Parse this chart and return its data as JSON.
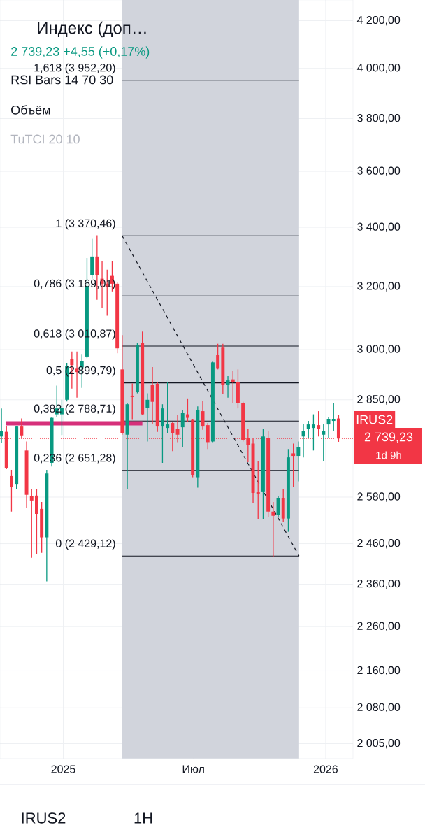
{
  "chart_data": {
    "type": "candlestick",
    "title": "Индекс (доп…",
    "subtitle": "2 739,23 +4,55 (+0,17%)",
    "x": [
      "2024-10-07",
      "2024-10-14",
      "2024-10-21",
      "2024-10-28",
      "2024-11-04",
      "2024-11-11",
      "2024-11-18",
      "2024-11-25",
      "2024-12-02",
      "2024-12-09",
      "2024-12-16",
      "2024-12-23",
      "2024-12-30",
      "2025-01-06",
      "2025-01-13",
      "2025-01-20",
      "2025-01-27",
      "2025-02-03",
      "2025-02-10",
      "2025-02-17",
      "2025-02-24",
      "2025-03-03",
      "2025-03-10",
      "2025-03-17",
      "2025-03-24",
      "2025-03-31",
      "2025-04-07",
      "2025-04-14",
      "2025-04-21",
      "2025-04-28",
      "2025-05-05",
      "2025-05-12",
      "2025-05-19",
      "2025-05-26",
      "2025-06-02",
      "2025-06-09",
      "2025-06-16",
      "2025-06-23",
      "2025-06-30",
      "2025-07-07",
      "2025-07-14",
      "2025-07-21",
      "2025-07-28",
      "2025-08-04",
      "2025-08-11",
      "2025-08-18",
      "2025-08-25",
      "2025-09-01",
      "2025-09-08",
      "2025-09-15",
      "2025-09-22",
      "2025-09-29",
      "2025-10-06",
      "2025-10-13",
      "2025-10-20",
      "2025-10-27",
      "2025-11-03",
      "2025-11-10",
      "2025-11-17",
      "2025-11-24",
      "2025-12-01",
      "2025-12-08",
      "2025-12-15",
      "2025-12-22",
      "2025-12-29",
      "2026-01-05",
      "2026-01-12",
      "2026-01-19"
    ],
    "ohlc": [
      [
        2745,
        2825,
        2726,
        2760
      ],
      [
        2758,
        2773,
        2655,
        2658
      ],
      [
        2636,
        2653,
        2542,
        2607
      ],
      [
        2615,
        2775,
        2601,
        2773
      ],
      [
        2773,
        2796,
        2741,
        2748
      ],
      [
        2706,
        2731,
        2551,
        2586
      ],
      [
        2582,
        2601,
        2425,
        2571
      ],
      [
        2584,
        2601,
        2434,
        2536
      ],
      [
        2549,
        2567,
        2437,
        2476
      ],
      [
        2476,
        2653,
        2367,
        2643
      ],
      [
        2672,
        2800,
        2662,
        2798
      ],
      [
        2808,
        2892,
        2800,
        2825
      ],
      [
        2808,
        2850,
        2749,
        2827
      ],
      [
        2850,
        2960,
        2845,
        2951
      ],
      [
        2972,
        2994,
        2883,
        2953
      ],
      [
        2942,
        2994,
        2856,
        2932
      ],
      [
        2946,
        2985,
        2885,
        2964
      ],
      [
        2979,
        3295,
        2974,
        3202
      ],
      [
        3237,
        3360,
        3226,
        3300
      ],
      [
        3300,
        3372,
        3157,
        3237
      ],
      [
        3226,
        3284,
        3130,
        3209
      ],
      [
        3209,
        3256,
        3106,
        3198
      ],
      [
        3235,
        3284,
        3184,
        3209
      ],
      [
        3209,
        3214,
        2989,
        3004
      ],
      [
        2940,
        3045,
        2750,
        2754
      ],
      [
        2750,
        2840,
        2601,
        2837
      ],
      [
        2862,
        2898,
        2792,
        2858
      ],
      [
        2873,
        3020,
        2869,
        3015
      ],
      [
        3021,
        3056,
        2806,
        2808
      ],
      [
        2827,
        2869,
        2731,
        2850
      ],
      [
        2893,
        2947,
        2779,
        2844
      ],
      [
        2897,
        2903,
        2758,
        2773
      ],
      [
        2773,
        2837,
        2672,
        2825
      ],
      [
        2769,
        2901,
        2754,
        2779
      ],
      [
        2783,
        2785,
        2704,
        2754
      ],
      [
        2767,
        2806,
        2729,
        2750
      ],
      [
        2771,
        2821,
        2716,
        2812
      ],
      [
        2808,
        2854,
        2787,
        2798
      ],
      [
        2792,
        2794,
        2633,
        2639
      ],
      [
        2633,
        2831,
        2605,
        2821
      ],
      [
        2817,
        2846,
        2764,
        2773
      ],
      [
        2777,
        2783,
        2710,
        2729
      ],
      [
        2731,
        2963,
        2729,
        2961
      ],
      [
        2983,
        3018,
        2940,
        2942
      ],
      [
        3006,
        3018,
        2867,
        2893
      ],
      [
        2893,
        2920,
        2856,
        2907
      ],
      [
        2910,
        2936,
        2840,
        2903
      ],
      [
        2903,
        2940,
        2825,
        2840
      ],
      [
        2840,
        2844,
        2731,
        2735
      ],
      [
        2741,
        2767,
        2674,
        2722
      ],
      [
        2725,
        2741,
        2564,
        2591
      ],
      [
        2593,
        2677,
        2522,
        2589
      ],
      [
        2595,
        2767,
        2522,
        2745
      ],
      [
        2741,
        2760,
        2527,
        2542
      ],
      [
        2542,
        2567,
        2428,
        2531
      ],
      [
        2533,
        2582,
        2527,
        2578
      ],
      [
        2578,
        2601,
        2515,
        2524
      ],
      [
        2524,
        2710,
        2490,
        2687
      ],
      [
        2698,
        2725,
        2607,
        2691
      ],
      [
        2691,
        2731,
        2622,
        2716
      ],
      [
        2745,
        2779,
        2687,
        2760
      ],
      [
        2767,
        2789,
        2740,
        2779
      ],
      [
        2769,
        2808,
        2706,
        2779
      ],
      [
        2777,
        2817,
        2745,
        2767
      ],
      [
        2750,
        2779,
        2677,
        2760
      ],
      [
        2779,
        2800,
        2740,
        2794
      ],
      [
        2789,
        2840,
        2760,
        2794
      ],
      [
        2796,
        2806,
        2730,
        2739.23
      ]
    ],
    "colors": [
      "#089981",
      "#f23645",
      "#f23645",
      "#089981",
      "#f23645",
      "#f23645",
      "#f23645",
      "#f23645",
      "#f23645",
      "#089981",
      "#089981",
      "#089981",
      "#089981",
      "#089981",
      "#f23645",
      "#f23645",
      "#089981",
      "#089981",
      "#089981",
      "#f23645",
      "#f23645",
      "#f23645",
      "#f23645",
      "#f23645",
      "#f23645",
      "#089981",
      "#f23645",
      "#089981",
      "#f23645",
      "#089981",
      "#f23645",
      "#f23645",
      "#089981",
      "#089981",
      "#f23645",
      "#f23645",
      "#089981",
      "#f23645",
      "#f23645",
      "#089981",
      "#f23645",
      "#f23645",
      "#089981",
      "#f23645",
      "#f23645",
      "#089981",
      "#f23645",
      "#f23645",
      "#f23645",
      "#f23645",
      "#f23645",
      "#f23645",
      "#089981",
      "#f23645",
      "#f23645",
      "#089981",
      "#f23645",
      "#089981",
      "#f23645",
      "#089981",
      "#089981",
      "#089981",
      "#089981",
      "#f23645",
      "#089981",
      "#089981",
      "#089981",
      "#f23645"
    ],
    "series": [
      {
        "type": "line",
        "x": [
          "2025-03-24",
          "2025-11-25"
        ],
        "values": [
          3370.46,
          2429.12
        ],
        "color": "#131722",
        "line_style": "dashed"
      },
      {
        "type": "line",
        "x": [
          "2024-10-13",
          "2025-04-21"
        ],
        "values": [
          2782,
          2782
        ],
        "color": "#d6307a",
        "line_style": "solid"
      }
    ],
    "bands": [
      {
        "axis": "x",
        "from": "2025-03-24",
        "to": "2025-11-25",
        "color": "#d1d4dc"
      }
    ],
    "ref_lines": [
      {
        "axis": "y",
        "value": 3952.2,
        "label": "1,618 (3 952,20)",
        "color": "#131722"
      },
      {
        "axis": "y",
        "value": 3370.46,
        "label": "1 (3 370,46)",
        "color": "#131722"
      },
      {
        "axis": "y",
        "value": 3169.01,
        "label": "0,786 (3 169,01)",
        "color": "#131722"
      },
      {
        "axis": "y",
        "value": 3010.87,
        "label": "0,618 (3 010,87)",
        "color": "#131722"
      },
      {
        "axis": "y",
        "value": 2899.79,
        "label": "0,5 (2 899,79)",
        "color": "#131722"
      },
      {
        "axis": "y",
        "value": 2788.71,
        "label": "0,382 (2 788,71)",
        "color": "#131722"
      },
      {
        "axis": "y",
        "value": 2651.28,
        "label": "0,236 (2 651,28)",
        "color": "#131722"
      },
      {
        "axis": "y",
        "value": 2429.12,
        "label": "0 (2 429,12)",
        "color": "#131722"
      },
      {
        "axis": "y",
        "value": 2739.23,
        "label": "IRUS2",
        "color": "#f23645",
        "line_style": "dotted"
      }
    ],
    "annotations": [
      "RSI Bars 14 70 30",
      "Объём",
      "TuTCI 20 10",
      "2 739,23",
      "1d 9h",
      "IRUS2",
      "1H"
    ],
    "log": "y",
    "grid": true,
    "xlim": [
      "2024-10-05",
      "2026-02-08"
    ],
    "xticks": [
      {
        "value": "2025-01-01",
        "label": "2025"
      },
      {
        "value": "2025-07-01",
        "label": "Июл"
      },
      {
        "value": "2026-01-01",
        "label": "2026"
      }
    ],
    "ylim": [
      1975,
      4290
    ],
    "yticks": [
      {
        "value": 2005,
        "label": "2 005,00"
      },
      {
        "value": 2080,
        "label": "2 080,00"
      },
      {
        "value": 2160,
        "label": "2 160,00"
      },
      {
        "value": 2260,
        "label": "2 260,00"
      },
      {
        "value": 2360,
        "label": "2 360,00"
      },
      {
        "value": 2460,
        "label": "2 460,00"
      },
      {
        "value": 2580,
        "label": "2 580,00"
      },
      {
        "value": 2850,
        "label": "2 850,00"
      },
      {
        "value": 3000,
        "label": "3 000,00"
      },
      {
        "value": 3200,
        "label": "3 200,00"
      },
      {
        "value": 3400,
        "label": "3 400,00"
      },
      {
        "value": 3600,
        "label": "3 600,00"
      },
      {
        "value": 3800,
        "label": "3 800,00"
      },
      {
        "value": 4000,
        "label": "4 000,00"
      },
      {
        "value": 4200,
        "label": "4 200,00"
      }
    ]
  }
}
